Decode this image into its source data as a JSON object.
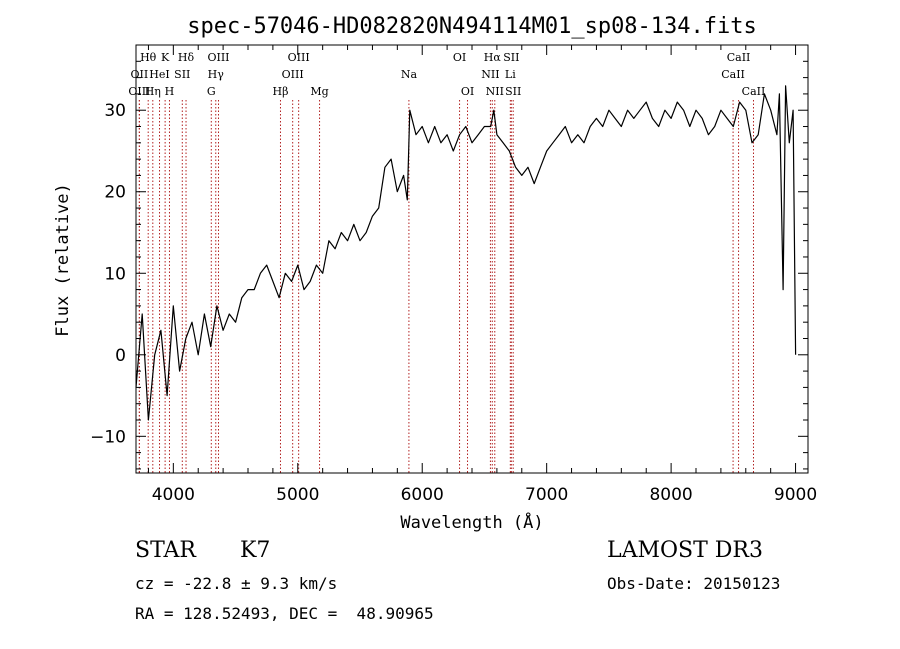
{
  "chart_data": {
    "type": "line",
    "title": "spec-57046-HD082820N494114M01_sp08-134.fits",
    "xlabel": "Wavelength (Å)",
    "ylabel": "Flux (relative)",
    "xlim": [
      3700,
      9100
    ],
    "ylim": [
      -14.5,
      38
    ],
    "x_ticks": [
      4000,
      5000,
      6000,
      7000,
      8000,
      9000
    ],
    "y_ticks": [
      -10,
      0,
      10,
      20,
      30
    ],
    "grid": false,
    "series": [
      {
        "name": "flux",
        "x": [
          3700,
          3750,
          3800,
          3850,
          3900,
          3950,
          4000,
          4050,
          4100,
          4150,
          4200,
          4250,
          4300,
          4350,
          4400,
          4450,
          4500,
          4550,
          4600,
          4650,
          4700,
          4750,
          4800,
          4850,
          4900,
          4950,
          5000,
          5050,
          5100,
          5150,
          5200,
          5250,
          5300,
          5350,
          5400,
          5450,
          5500,
          5550,
          5600,
          5650,
          5700,
          5750,
          5800,
          5850,
          5880,
          5900,
          5950,
          6000,
          6050,
          6100,
          6150,
          6200,
          6250,
          6300,
          6350,
          6400,
          6450,
          6500,
          6550,
          6575,
          6600,
          6650,
          6700,
          6750,
          6800,
          6850,
          6900,
          6950,
          7000,
          7050,
          7100,
          7150,
          7200,
          7250,
          7300,
          7350,
          7400,
          7450,
          7500,
          7550,
          7600,
          7650,
          7700,
          7750,
          7800,
          7850,
          7900,
          7950,
          8000,
          8050,
          8100,
          8150,
          8200,
          8250,
          8300,
          8350,
          8400,
          8450,
          8500,
          8550,
          8600,
          8650,
          8700,
          8750,
          8800,
          8850,
          8870,
          8900,
          8920,
          8950,
          8980,
          9000
        ],
        "y": [
          -4,
          5,
          -8,
          0,
          3,
          -5,
          6,
          -2,
          2,
          4,
          0,
          5,
          1,
          6,
          3,
          5,
          4,
          7,
          8,
          8,
          10,
          11,
          9,
          7,
          10,
          9,
          11,
          8,
          9,
          11,
          10,
          14,
          13,
          15,
          14,
          16,
          14,
          15,
          17,
          18,
          23,
          24,
          20,
          22,
          19,
          30,
          27,
          28,
          26,
          28,
          26,
          27,
          25,
          27,
          28,
          26,
          27,
          28,
          28,
          30,
          27,
          26,
          25,
          23,
          22,
          23,
          21,
          23,
          25,
          26,
          27,
          28,
          26,
          27,
          26,
          28,
          29,
          28,
          30,
          29,
          28,
          30,
          29,
          30,
          31,
          29,
          28,
          30,
          29,
          31,
          30,
          28,
          30,
          29,
          27,
          28,
          30,
          29,
          28,
          31,
          30,
          26,
          27,
          32,
          30,
          27,
          32,
          8,
          33,
          26,
          30,
          0
        ]
      }
    ],
    "emission_lines": [
      {
        "label": "Hθ",
        "x": 3798,
        "row": 1
      },
      {
        "label": "OII",
        "x": 3727,
        "row": 2
      },
      {
        "label": "OIII",
        "x": 3727,
        "row": 3
      },
      {
        "label": "K",
        "x": 3934,
        "row": 1
      },
      {
        "label": "HeI",
        "x": 3889,
        "row": 2
      },
      {
        "label": "Hη",
        "x": 3835,
        "row": 3
      },
      {
        "label": "H",
        "x": 3969,
        "row": 3
      },
      {
        "label": "Hδ",
        "x": 4102,
        "row": 1
      },
      {
        "label": "SII",
        "x": 4072,
        "row": 2
      },
      {
        "label": "OIII",
        "x": 4363,
        "row": 1
      },
      {
        "label": "Hγ",
        "x": 4341,
        "row": 2
      },
      {
        "label": "G",
        "x": 4305,
        "row": 3
      },
      {
        "label": "Hβ",
        "x": 4861,
        "row": 3
      },
      {
        "label": "OIII",
        "x": 5007,
        "row": 1
      },
      {
        "label": "OIII",
        "x": 4959,
        "row": 2
      },
      {
        "label": "Mg",
        "x": 5175,
        "row": 3
      },
      {
        "label": "Na",
        "x": 5893,
        "row": 2
      },
      {
        "label": "OI",
        "x": 6300,
        "row": 1
      },
      {
        "label": "OI",
        "x": 6364,
        "row": 3
      },
      {
        "label": "Hα",
        "x": 6563,
        "row": 1
      },
      {
        "label": "SII",
        "x": 6716,
        "row": 1
      },
      {
        "label": "NII",
        "x": 6548,
        "row": 2
      },
      {
        "label": "Li",
        "x": 6708,
        "row": 2
      },
      {
        "label": "NII",
        "x": 6583,
        "row": 3
      },
      {
        "label": "SII",
        "x": 6731,
        "row": 3
      },
      {
        "label": "CaII",
        "x": 8542,
        "row": 1
      },
      {
        "label": "CaII",
        "x": 8498,
        "row": 2
      },
      {
        "label": "CaII",
        "x": 8662,
        "row": 3
      }
    ]
  },
  "info": {
    "object_class": "STAR",
    "subclass": "K7",
    "survey": "LAMOST DR3",
    "cz_line": "cz = -22.8 ± 9.3 km/s",
    "obs_date": "Obs-Date: 20150123",
    "coords": "RA = 128.52493, DEC =  48.90965"
  },
  "colors": {
    "line_marker": "#b22222",
    "spectrum": "#000000"
  }
}
